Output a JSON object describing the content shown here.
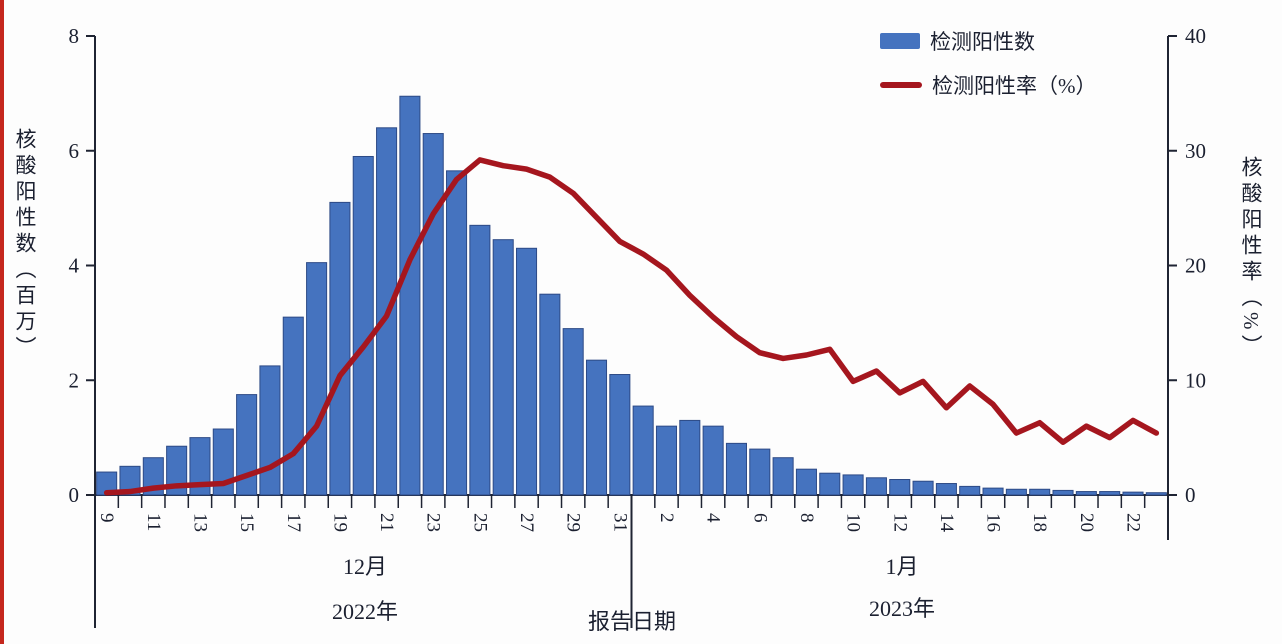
{
  "page": {
    "background": "#fdfdfd",
    "left_edge_stripe_color": "#c5271d"
  },
  "chart_data": {
    "type": "combo",
    "title": "",
    "categories": [
      "9",
      "10",
      "11",
      "12",
      "13",
      "14",
      "15",
      "16",
      "17",
      "18",
      "19",
      "20",
      "21",
      "22",
      "23",
      "24",
      "25",
      "26",
      "27",
      "28",
      "29",
      "30",
      "31",
      "1",
      "2",
      "3",
      "4",
      "5",
      "6",
      "7",
      "8",
      "9",
      "10",
      "11",
      "12",
      "13",
      "14",
      "15",
      "16",
      "17",
      "18",
      "19",
      "20",
      "21",
      "22",
      "23"
    ],
    "x_tick_label_every": 2,
    "series": [
      {
        "name": "检测阳性数",
        "type": "bar",
        "axis": "left",
        "color": "#4573bf",
        "stroke": "#2d4a86",
        "values": [
          0.4,
          0.5,
          0.65,
          0.85,
          1.0,
          1.15,
          1.75,
          2.25,
          3.1,
          4.05,
          5.1,
          5.9,
          6.4,
          6.95,
          6.3,
          5.65,
          4.7,
          4.45,
          4.3,
          3.5,
          2.9,
          2.35,
          2.1,
          1.55,
          1.2,
          1.3,
          1.2,
          0.9,
          0.8,
          0.65,
          0.45,
          0.38,
          0.35,
          0.3,
          0.27,
          0.24,
          0.2,
          0.15,
          0.12,
          0.1,
          0.1,
          0.08,
          0.06,
          0.06,
          0.05,
          0.04
        ]
      },
      {
        "name": "检测阳性率（%）",
        "type": "line",
        "axis": "right",
        "color": "#a5161e",
        "values": [
          0.2,
          0.3,
          0.6,
          0.8,
          0.9,
          1.0,
          1.7,
          2.4,
          3.6,
          6.0,
          10.4,
          12.9,
          15.6,
          20.5,
          24.5,
          27.5,
          29.2,
          28.7,
          28.4,
          27.7,
          26.3,
          24.2,
          22.1,
          21.0,
          19.6,
          17.4,
          15.5,
          13.8,
          12.4,
          11.9,
          12.2,
          12.7,
          9.9,
          10.8,
          8.9,
          9.9,
          7.6,
          9.5,
          7.9,
          5.4,
          6.3,
          4.6,
          6.0,
          5.0,
          6.5,
          5.4
        ]
      }
    ],
    "left_axis": {
      "title": "核酸阳性数（百万）",
      "ticks": [
        0,
        2,
        4,
        6,
        8
      ],
      "range": [
        0,
        8
      ]
    },
    "right_axis": {
      "title": "核酸阳性率（%）",
      "ticks": [
        0,
        10,
        20,
        30,
        40
      ],
      "range": [
        0,
        40
      ]
    },
    "x_axis": {
      "title": "报告日期",
      "month_groups": [
        {
          "month": "12月",
          "year": "2022年"
        },
        {
          "month": "1月",
          "year": "2023年"
        }
      ]
    },
    "legend_position": "top-right",
    "grid": false,
    "text_color": "#1b2030",
    "axis_color": "#1f2433"
  }
}
